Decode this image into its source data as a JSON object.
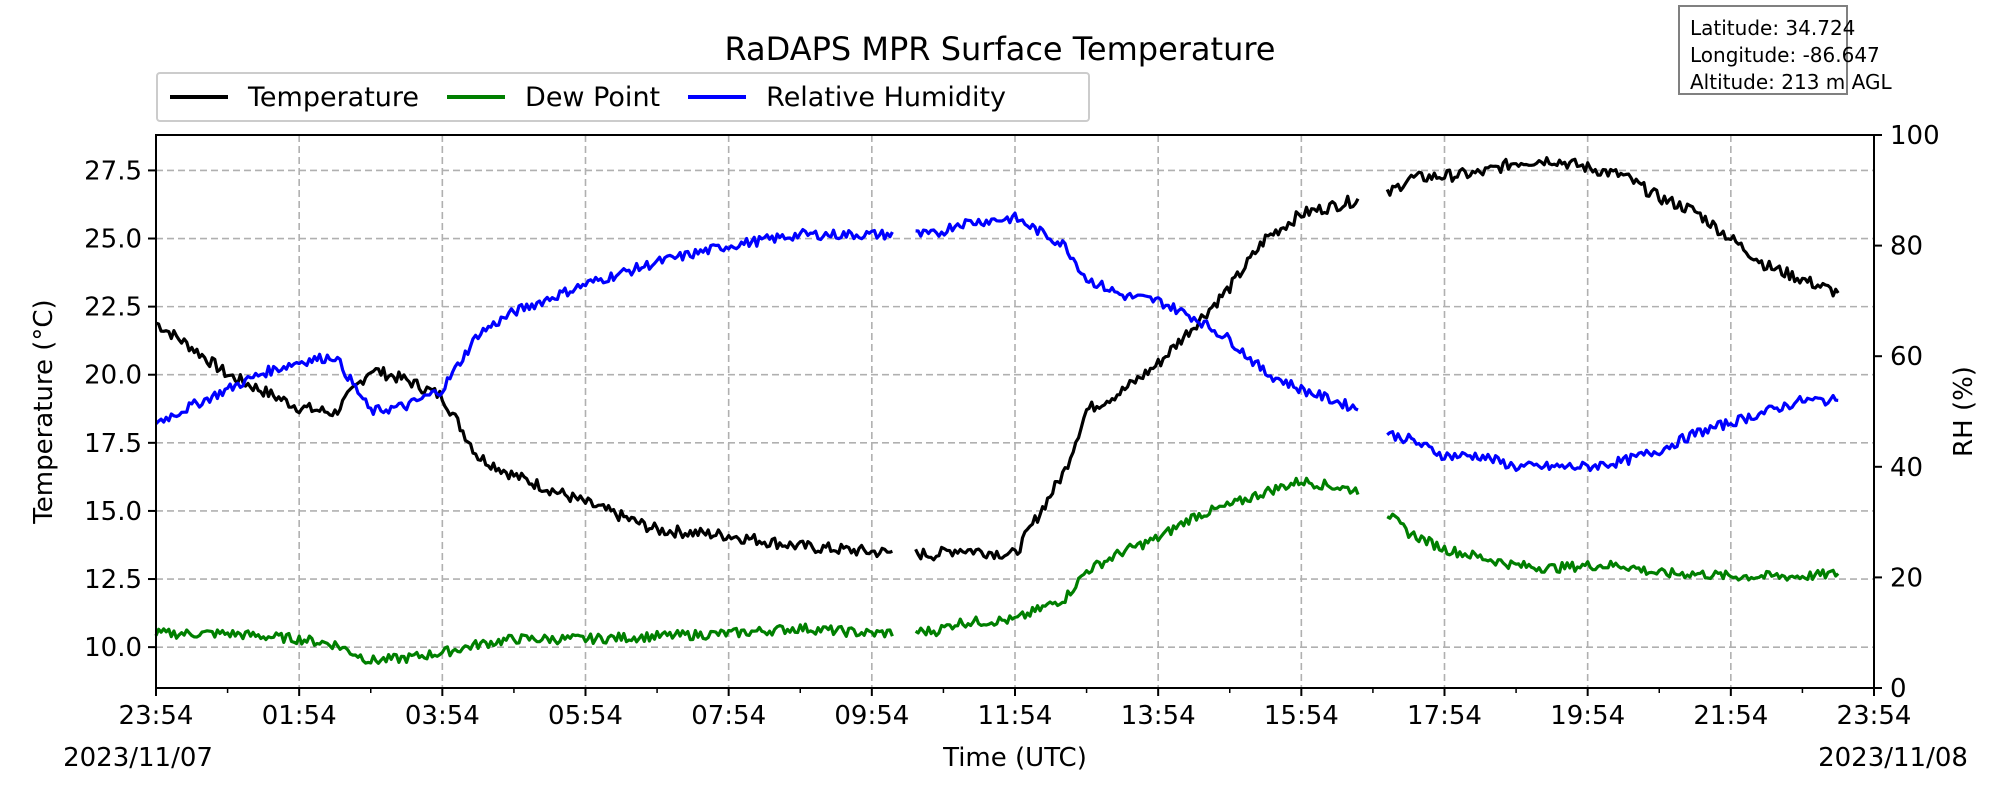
{
  "chart_data": {
    "type": "line",
    "title": "RaDAPS MPR Surface Temperature",
    "xlabel": "Time (UTC)",
    "ylabel_left": "Temperature ($^\\circ$C)",
    "ylabel_left_display": "Temperature (°C)",
    "ylabel_right": "RH (%)",
    "x_ticks": [
      "23:54",
      "01:54",
      "03:54",
      "05:54",
      "07:54",
      "09:54",
      "11:54",
      "13:54",
      "15:54",
      "17:54",
      "19:54",
      "21:54",
      "23:54"
    ],
    "x_start_date": "2023/11/07",
    "x_end_date": "2023/11/08",
    "ylim_left": [
      8.5,
      28.8
    ],
    "yticks_left": [
      "10.0",
      "12.5",
      "15.0",
      "17.5",
      "20.0",
      "22.5",
      "25.0",
      "27.5"
    ],
    "ylim_right": [
      0,
      100
    ],
    "yticks_right": [
      "0",
      "20",
      "40",
      "60",
      "80",
      "100"
    ],
    "grid": true,
    "legend_location": "upper-left-outside",
    "x_hours_since_start": [
      0,
      0.5,
      1,
      1.5,
      2,
      2.5,
      3,
      3.5,
      4,
      4.5,
      5,
      6,
      7,
      8,
      9,
      10,
      10.9,
      11.2,
      12,
      12.7,
      13,
      13.5,
      14,
      14.5,
      15,
      15.5,
      16,
      16.9,
      17.2,
      17.5,
      18,
      18.5,
      19,
      19.5,
      20,
      20.5,
      21,
      21.5,
      22,
      22.5,
      23,
      23.5,
      24
    ],
    "series": [
      {
        "name": "Temperature",
        "color": "#000000",
        "axis": "left",
        "values": [
          21.9,
          21.0,
          20.0,
          19.4,
          18.8,
          18.6,
          20.2,
          19.8,
          19.2,
          17.0,
          16.3,
          15.3,
          14.3,
          14.1,
          13.7,
          13.5,
          13.4,
          13.6,
          13.4,
          16.5,
          18.7,
          19.4,
          20.4,
          21.8,
          23.2,
          25.0,
          25.9,
          26.5,
          26.6,
          27.2,
          27.3,
          27.4,
          27.8,
          27.9,
          27.6,
          27.3,
          26.5,
          26.0,
          25.0,
          24.0,
          23.5,
          23.0,
          null
        ]
      },
      {
        "name": "Dew Point",
        "color": "#007f00",
        "axis": "left",
        "values": [
          10.5,
          10.5,
          10.5,
          10.4,
          10.3,
          10.1,
          9.5,
          9.6,
          9.8,
          10.1,
          10.3,
          10.3,
          10.4,
          10.5,
          10.7,
          10.5,
          10.6,
          10.9,
          11.0,
          11.8,
          12.8,
          13.5,
          14.0,
          14.8,
          15.2,
          15.7,
          16.1,
          15.7,
          14.9,
          14.2,
          13.6,
          13.3,
          13.0,
          12.9,
          13.0,
          13.0,
          12.7,
          12.7,
          12.6,
          12.6,
          12.6,
          12.7,
          null
        ]
      },
      {
        "name": "Relative Humidity",
        "color": "#0000ff",
        "axis": "right",
        "values": [
          48,
          51,
          54,
          57,
          59,
          60,
          50,
          51,
          54,
          64,
          68,
          73,
          77,
          80,
          82,
          82,
          82,
          84,
          85,
          80,
          74,
          71,
          70,
          67,
          63,
          57,
          54,
          50,
          46,
          45,
          42,
          42,
          40,
          40,
          40,
          41,
          43,
          46,
          48,
          50,
          52,
          52,
          null
        ]
      }
    ],
    "gaps": [
      {
        "series": "all",
        "between_hours": [
          10.3,
          10.6
        ]
      },
      {
        "series": "all",
        "between_hours": [
          16.8,
          17.2
        ]
      }
    ]
  },
  "info": {
    "latitude": "Latitude: 34.724",
    "longitude": "Longitude: -86.647",
    "altitude": "Altitude: 213 m AGL"
  },
  "legend": {
    "temperature": "Temperature",
    "dewpoint": "Dew Point",
    "rh": "Relative Humidity"
  }
}
